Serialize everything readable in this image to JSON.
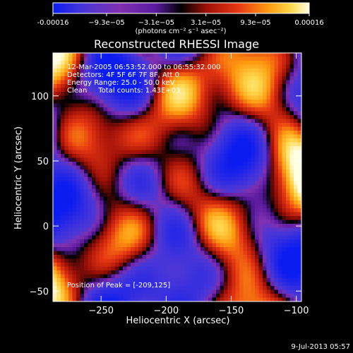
{
  "chart_data": {
    "type": "heatmap",
    "title": "Reconstructed RHESSI Image",
    "xlabel": "Heliocentric X (arcsec)",
    "ylabel": "Heliocentric Y (arcsec)",
    "xlim": [
      -287,
      -96
    ],
    "ylim": [
      -58,
      133
    ],
    "x_ticks": [
      -250,
      -200,
      -150,
      -100
    ],
    "y_ticks": [
      0,
      50,
      100,
      -50
    ],
    "grid": false,
    "colorbar": {
      "min": -0.00016,
      "max": 0.00016,
      "ticks": [
        -0.00016,
        -9.3e-05,
        -3.1e-05,
        3.1e-05,
        9.3e-05,
        0.00016
      ],
      "tick_labels": [
        "-0.00016",
        "−9.3e−05",
        "−3.1e−05",
        "3.1e−05",
        "9.3e−05",
        "0.00016"
      ],
      "colors": [
        "#0b1cf0",
        "#4a36d8",
        "#8030b0",
        "#5a1aa0",
        "#000000",
        "#a01008",
        "#e63612",
        "#ff9a10",
        "#ffd84c",
        "#ffffe6"
      ],
      "unit_label": "(photons cm⁻² s⁻¹ asec⁻²)"
    },
    "annotations": [
      "12-Mar-2005 06:53:52.000 to 06:55:32.000",
      "Detectors: 4F 5F 6F 7F 8F, Att 0",
      "Energy Range: 25.0 - 50.0 keV",
      "Clean     Total counts: 1.43E+03"
    ],
    "peak_label": "Position of Peak = [-209,125]",
    "peak": {
      "x": -209,
      "y": 125
    }
  },
  "footer": {
    "date": "9-Jul-2013 05:57"
  }
}
